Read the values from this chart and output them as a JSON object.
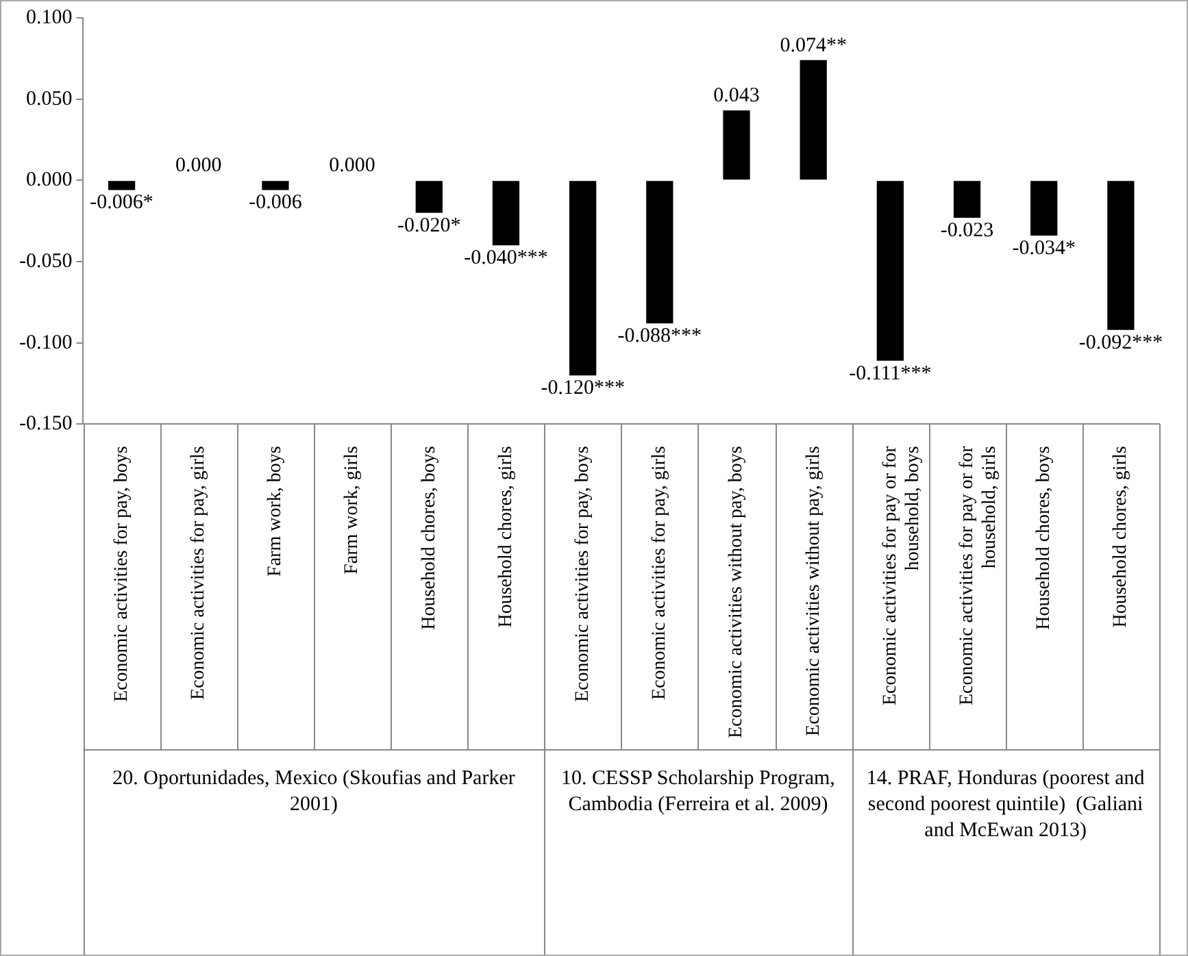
{
  "chart_data": {
    "type": "bar",
    "categories": [
      "Economic activities for pay, boys",
      "Economic activities for pay, girls",
      "Farm work, boys",
      "Farm work, girls",
      "Household chores, boys",
      "Household chores, girls",
      "Economic activities for pay, boys",
      "Economic activities for pay, girls",
      "Economic activities without pay, boys",
      "Economic activities without pay, girls",
      "Economic activities for pay or for household, boys",
      "Economic activities for pay or for household, girls",
      "Household chores, boys",
      "Household chores, girls"
    ],
    "values": [
      -0.006,
      0,
      -0.006,
      0,
      -0.02,
      -0.04,
      -0.12,
      -0.088,
      0.043,
      0.074,
      -0.111,
      -0.023,
      -0.034,
      -0.092
    ],
    "value_labels": [
      "-0.006*",
      "0.000",
      "-0.006",
      "0.000",
      "-0.020*",
      "-0.040***",
      "-0.120***",
      "-0.088***",
      "0.043",
      "0.074**",
      "-0.111***",
      "-0.023",
      "-0.034*",
      "-0.092***"
    ],
    "color": "#000000",
    "ylim": [
      -0.15,
      0.1
    ],
    "yticks": [
      {
        "value": 0.1,
        "label": "0.100"
      },
      {
        "value": 0.05,
        "label": "0.050"
      },
      {
        "value": 0,
        "label": "0.000"
      },
      {
        "value": -0.05,
        "label": "-0.050"
      },
      {
        "value": -0.1,
        "label": "-0.100"
      },
      {
        "value": -0.15,
        "label": "-0.150"
      }
    ],
    "grid": false,
    "legend": false,
    "annotations": [
      "20. Oportunidades, Mexico (Skoufias and Parker 2001)",
      "10. CESSP Scholarship Program, Cambodia (Ferreira et al. 2009)",
      "14. PRAF, Honduras (poorest and second poorest quintile)  (Galiani and McEwan 2013)"
    ]
  }
}
